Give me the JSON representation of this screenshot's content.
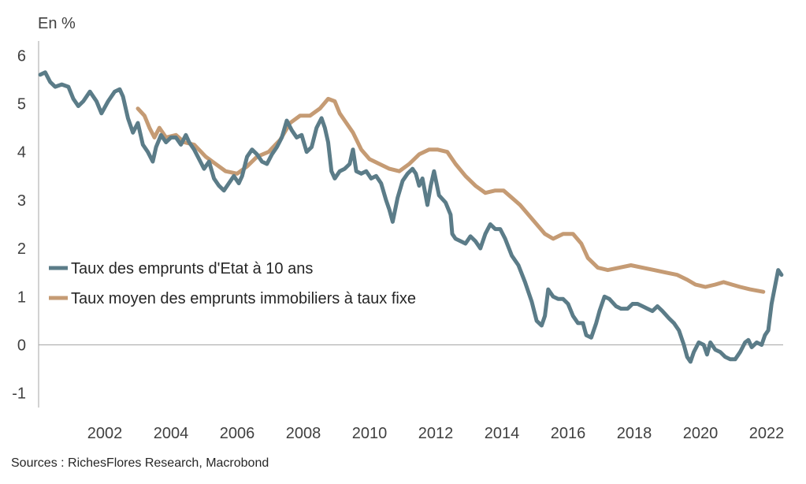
{
  "chart_data": {
    "type": "line",
    "unit_label": "En %",
    "source": "Sources : RichesFlores Research, Macrobond",
    "xlim": [
      2000.0,
      2022.5
    ],
    "ylim": [
      -1.3,
      6.3
    ],
    "x_ticks": [
      "2002",
      "2004",
      "2006",
      "2008",
      "2010",
      "2012",
      "2014",
      "2016",
      "2018",
      "2020",
      "2022"
    ],
    "y_ticks": [
      "-1",
      "0",
      "1",
      "2",
      "3",
      "4",
      "5",
      "6"
    ],
    "legend_placement": "center-left",
    "colors": {
      "gov_bond": "#5b7c88",
      "mortgage": "#c59b74",
      "axis": "#a6a6a6"
    },
    "series": [
      {
        "name": "Taux des emprunts d'Etat à 10 ans",
        "color": "#5b7c88",
        "points": [
          [
            2000.05,
            5.6
          ],
          [
            2000.2,
            5.65
          ],
          [
            2000.35,
            5.45
          ],
          [
            2000.5,
            5.35
          ],
          [
            2000.7,
            5.4
          ],
          [
            2000.9,
            5.35
          ],
          [
            2001.05,
            5.1
          ],
          [
            2001.2,
            4.95
          ],
          [
            2001.35,
            5.05
          ],
          [
            2001.55,
            5.25
          ],
          [
            2001.75,
            5.05
          ],
          [
            2001.9,
            4.8
          ],
          [
            2002.1,
            5.05
          ],
          [
            2002.3,
            5.25
          ],
          [
            2002.45,
            5.3
          ],
          [
            2002.55,
            5.15
          ],
          [
            2002.7,
            4.7
          ],
          [
            2002.85,
            4.4
          ],
          [
            2003.0,
            4.6
          ],
          [
            2003.15,
            4.15
          ],
          [
            2003.3,
            4.0
          ],
          [
            2003.45,
            3.8
          ],
          [
            2003.55,
            4.1
          ],
          [
            2003.7,
            4.35
          ],
          [
            2003.85,
            4.2
          ],
          [
            2004.0,
            4.3
          ],
          [
            2004.15,
            4.3
          ],
          [
            2004.3,
            4.15
          ],
          [
            2004.45,
            4.35
          ],
          [
            2004.55,
            4.2
          ],
          [
            2004.7,
            4.05
          ],
          [
            2004.85,
            3.85
          ],
          [
            2005.0,
            3.65
          ],
          [
            2005.15,
            3.8
          ],
          [
            2005.3,
            3.45
          ],
          [
            2005.45,
            3.3
          ],
          [
            2005.6,
            3.2
          ],
          [
            2005.75,
            3.35
          ],
          [
            2005.9,
            3.5
          ],
          [
            2006.05,
            3.35
          ],
          [
            2006.15,
            3.5
          ],
          [
            2006.3,
            3.9
          ],
          [
            2006.45,
            4.05
          ],
          [
            2006.6,
            3.95
          ],
          [
            2006.75,
            3.8
          ],
          [
            2006.9,
            3.75
          ],
          [
            2007.05,
            3.95
          ],
          [
            2007.2,
            4.1
          ],
          [
            2007.35,
            4.3
          ],
          [
            2007.5,
            4.65
          ],
          [
            2007.65,
            4.45
          ],
          [
            2007.8,
            4.3
          ],
          [
            2007.95,
            4.35
          ],
          [
            2008.1,
            4.0
          ],
          [
            2008.25,
            4.1
          ],
          [
            2008.4,
            4.5
          ],
          [
            2008.55,
            4.7
          ],
          [
            2008.65,
            4.5
          ],
          [
            2008.75,
            4.2
          ],
          [
            2008.85,
            3.6
          ],
          [
            2008.95,
            3.45
          ],
          [
            2009.1,
            3.6
          ],
          [
            2009.25,
            3.65
          ],
          [
            2009.4,
            3.75
          ],
          [
            2009.5,
            4.05
          ],
          [
            2009.6,
            3.6
          ],
          [
            2009.75,
            3.55
          ],
          [
            2009.9,
            3.6
          ],
          [
            2010.05,
            3.45
          ],
          [
            2010.2,
            3.5
          ],
          [
            2010.35,
            3.35
          ],
          [
            2010.5,
            3.0
          ],
          [
            2010.6,
            2.8
          ],
          [
            2010.7,
            2.55
          ],
          [
            2010.85,
            3.05
          ],
          [
            2011.0,
            3.4
          ],
          [
            2011.15,
            3.55
          ],
          [
            2011.3,
            3.65
          ],
          [
            2011.4,
            3.55
          ],
          [
            2011.5,
            3.3
          ],
          [
            2011.6,
            3.45
          ],
          [
            2011.75,
            2.9
          ],
          [
            2011.85,
            3.3
          ],
          [
            2011.95,
            3.6
          ],
          [
            2012.1,
            3.1
          ],
          [
            2012.3,
            2.95
          ],
          [
            2012.45,
            2.7
          ],
          [
            2012.5,
            2.3
          ],
          [
            2012.6,
            2.2
          ],
          [
            2012.75,
            2.15
          ],
          [
            2012.9,
            2.1
          ],
          [
            2013.05,
            2.25
          ],
          [
            2013.2,
            2.15
          ],
          [
            2013.35,
            2.0
          ],
          [
            2013.5,
            2.3
          ],
          [
            2013.65,
            2.5
          ],
          [
            2013.8,
            2.4
          ],
          [
            2013.95,
            2.4
          ],
          [
            2014.1,
            2.2
          ],
          [
            2014.3,
            1.85
          ],
          [
            2014.5,
            1.65
          ],
          [
            2014.7,
            1.3
          ],
          [
            2014.9,
            0.9
          ],
          [
            2015.05,
            0.5
          ],
          [
            2015.2,
            0.4
          ],
          [
            2015.3,
            0.6
          ],
          [
            2015.4,
            1.15
          ],
          [
            2015.55,
            1.0
          ],
          [
            2015.7,
            0.95
          ],
          [
            2015.85,
            0.95
          ],
          [
            2016.0,
            0.85
          ],
          [
            2016.15,
            0.6
          ],
          [
            2016.3,
            0.45
          ],
          [
            2016.45,
            0.45
          ],
          [
            2016.55,
            0.2
          ],
          [
            2016.7,
            0.15
          ],
          [
            2016.85,
            0.45
          ],
          [
            2016.95,
            0.7
          ],
          [
            2017.1,
            1.0
          ],
          [
            2017.25,
            0.95
          ],
          [
            2017.45,
            0.8
          ],
          [
            2017.6,
            0.75
          ],
          [
            2017.8,
            0.75
          ],
          [
            2017.95,
            0.85
          ],
          [
            2018.1,
            0.85
          ],
          [
            2018.25,
            0.8
          ],
          [
            2018.4,
            0.75
          ],
          [
            2018.55,
            0.7
          ],
          [
            2018.7,
            0.8
          ],
          [
            2018.85,
            0.7
          ],
          [
            2019.05,
            0.55
          ],
          [
            2019.2,
            0.45
          ],
          [
            2019.35,
            0.3
          ],
          [
            2019.5,
            0.0
          ],
          [
            2019.6,
            -0.25
          ],
          [
            2019.7,
            -0.35
          ],
          [
            2019.8,
            -0.15
          ],
          [
            2019.95,
            0.05
          ],
          [
            2020.1,
            0.0
          ],
          [
            2020.2,
            -0.2
          ],
          [
            2020.3,
            0.05
          ],
          [
            2020.45,
            -0.1
          ],
          [
            2020.6,
            -0.15
          ],
          [
            2020.75,
            -0.25
          ],
          [
            2020.9,
            -0.3
          ],
          [
            2021.05,
            -0.3
          ],
          [
            2021.2,
            -0.15
          ],
          [
            2021.35,
            0.05
          ],
          [
            2021.45,
            0.1
          ],
          [
            2021.55,
            -0.05
          ],
          [
            2021.7,
            0.05
          ],
          [
            2021.85,
            0.0
          ],
          [
            2021.95,
            0.2
          ],
          [
            2022.05,
            0.3
          ],
          [
            2022.15,
            0.85
          ],
          [
            2022.25,
            1.2
          ],
          [
            2022.35,
            1.55
          ],
          [
            2022.45,
            1.45
          ]
        ]
      },
      {
        "name": "Taux moyen des emprunts immobiliers à taux fixe",
        "color": "#c59b74",
        "points": [
          [
            2003.0,
            4.9
          ],
          [
            2003.2,
            4.75
          ],
          [
            2003.35,
            4.5
          ],
          [
            2003.5,
            4.3
          ],
          [
            2003.65,
            4.5
          ],
          [
            2003.85,
            4.3
          ],
          [
            2004.15,
            4.35
          ],
          [
            2004.4,
            4.2
          ],
          [
            2004.7,
            4.15
          ],
          [
            2005.05,
            3.9
          ],
          [
            2005.35,
            3.75
          ],
          [
            2005.65,
            3.6
          ],
          [
            2006.0,
            3.55
          ],
          [
            2006.3,
            3.7
          ],
          [
            2006.6,
            3.9
          ],
          [
            2006.95,
            4.0
          ],
          [
            2007.3,
            4.25
          ],
          [
            2007.6,
            4.6
          ],
          [
            2007.9,
            4.75
          ],
          [
            2008.2,
            4.75
          ],
          [
            2008.5,
            4.9
          ],
          [
            2008.75,
            5.1
          ],
          [
            2008.95,
            5.05
          ],
          [
            2009.1,
            4.8
          ],
          [
            2009.3,
            4.6
          ],
          [
            2009.5,
            4.4
          ],
          [
            2009.75,
            4.05
          ],
          [
            2010.0,
            3.85
          ],
          [
            2010.3,
            3.75
          ],
          [
            2010.6,
            3.65
          ],
          [
            2010.9,
            3.6
          ],
          [
            2011.2,
            3.75
          ],
          [
            2011.5,
            3.95
          ],
          [
            2011.8,
            4.05
          ],
          [
            2012.05,
            4.05
          ],
          [
            2012.35,
            4.0
          ],
          [
            2012.6,
            3.75
          ],
          [
            2012.9,
            3.5
          ],
          [
            2013.2,
            3.3
          ],
          [
            2013.5,
            3.15
          ],
          [
            2013.8,
            3.2
          ],
          [
            2014.05,
            3.2
          ],
          [
            2014.3,
            3.05
          ],
          [
            2014.55,
            2.9
          ],
          [
            2014.8,
            2.7
          ],
          [
            2015.05,
            2.5
          ],
          [
            2015.3,
            2.3
          ],
          [
            2015.55,
            2.2
          ],
          [
            2015.85,
            2.3
          ],
          [
            2016.15,
            2.3
          ],
          [
            2016.4,
            2.1
          ],
          [
            2016.6,
            1.8
          ],
          [
            2016.9,
            1.6
          ],
          [
            2017.2,
            1.55
          ],
          [
            2017.55,
            1.6
          ],
          [
            2017.9,
            1.65
          ],
          [
            2018.25,
            1.6
          ],
          [
            2018.6,
            1.55
          ],
          [
            2018.95,
            1.5
          ],
          [
            2019.3,
            1.45
          ],
          [
            2019.6,
            1.35
          ],
          [
            2019.85,
            1.25
          ],
          [
            2020.15,
            1.2
          ],
          [
            2020.45,
            1.25
          ],
          [
            2020.7,
            1.3
          ],
          [
            2020.95,
            1.25
          ],
          [
            2021.2,
            1.2
          ],
          [
            2021.5,
            1.15
          ],
          [
            2021.9,
            1.1
          ]
        ]
      }
    ]
  }
}
